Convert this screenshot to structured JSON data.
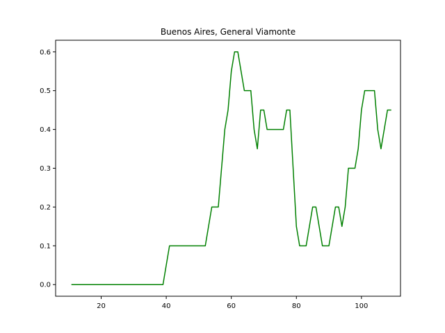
{
  "chart_data": {
    "type": "line",
    "title": "Buenos Aires, General Viamonte",
    "xlabel": "",
    "ylabel": "",
    "xlim": [
      6,
      112
    ],
    "ylim": [
      -0.03,
      0.63
    ],
    "xticks": [
      20,
      40,
      60,
      80,
      100
    ],
    "yticks": [
      0.0,
      0.1,
      0.2,
      0.3,
      0.4,
      0.5,
      0.6
    ],
    "ytick_labels": [
      "0.0",
      "0.1",
      "0.2",
      "0.3",
      "0.4",
      "0.5",
      "0.6"
    ],
    "grid": false,
    "series": [
      {
        "color": "#008000",
        "x": [
          11,
          12,
          13,
          14,
          15,
          16,
          17,
          18,
          19,
          20,
          21,
          22,
          23,
          24,
          25,
          26,
          27,
          28,
          29,
          30,
          31,
          32,
          33,
          34,
          35,
          36,
          37,
          38,
          39,
          40,
          41,
          42,
          43,
          44,
          45,
          46,
          47,
          48,
          49,
          50,
          51,
          52,
          53,
          54,
          55,
          56,
          57,
          58,
          59,
          60,
          61,
          62,
          63,
          64,
          65,
          66,
          67,
          68,
          69,
          70,
          71,
          72,
          73,
          74,
          75,
          76,
          77,
          78,
          79,
          80,
          81,
          82,
          83,
          84,
          85,
          86,
          87,
          88,
          89,
          90,
          91,
          92,
          93,
          94,
          95,
          96,
          97,
          98,
          99,
          100,
          101,
          102,
          103,
          104,
          105,
          106,
          107,
          108,
          109
        ],
        "y": [
          0,
          0,
          0,
          0,
          0,
          0,
          0,
          0,
          0,
          0,
          0,
          0,
          0,
          0,
          0,
          0,
          0,
          0,
          0,
          0,
          0,
          0,
          0,
          0,
          0,
          0,
          0,
          0,
          0,
          0.05,
          0.1,
          0.1,
          0.1,
          0.1,
          0.1,
          0.1,
          0.1,
          0.1,
          0.1,
          0.1,
          0.1,
          0.1,
          0.15,
          0.2,
          0.2,
          0.2,
          0.3,
          0.4,
          0.45,
          0.55,
          0.6,
          0.6,
          0.55,
          0.5,
          0.5,
          0.5,
          0.4,
          0.35,
          0.45,
          0.45,
          0.4,
          0.4,
          0.4,
          0.4,
          0.4,
          0.4,
          0.45,
          0.45,
          0.3,
          0.15,
          0.1,
          0.1,
          0.1,
          0.15,
          0.2,
          0.2,
          0.15,
          0.1,
          0.1,
          0.1,
          0.15,
          0.2,
          0.2,
          0.15,
          0.2,
          0.3,
          0.3,
          0.3,
          0.35,
          0.45,
          0.5,
          0.5,
          0.5,
          0.5,
          0.4,
          0.35,
          0.4,
          0.45,
          0.45
        ]
      }
    ]
  }
}
